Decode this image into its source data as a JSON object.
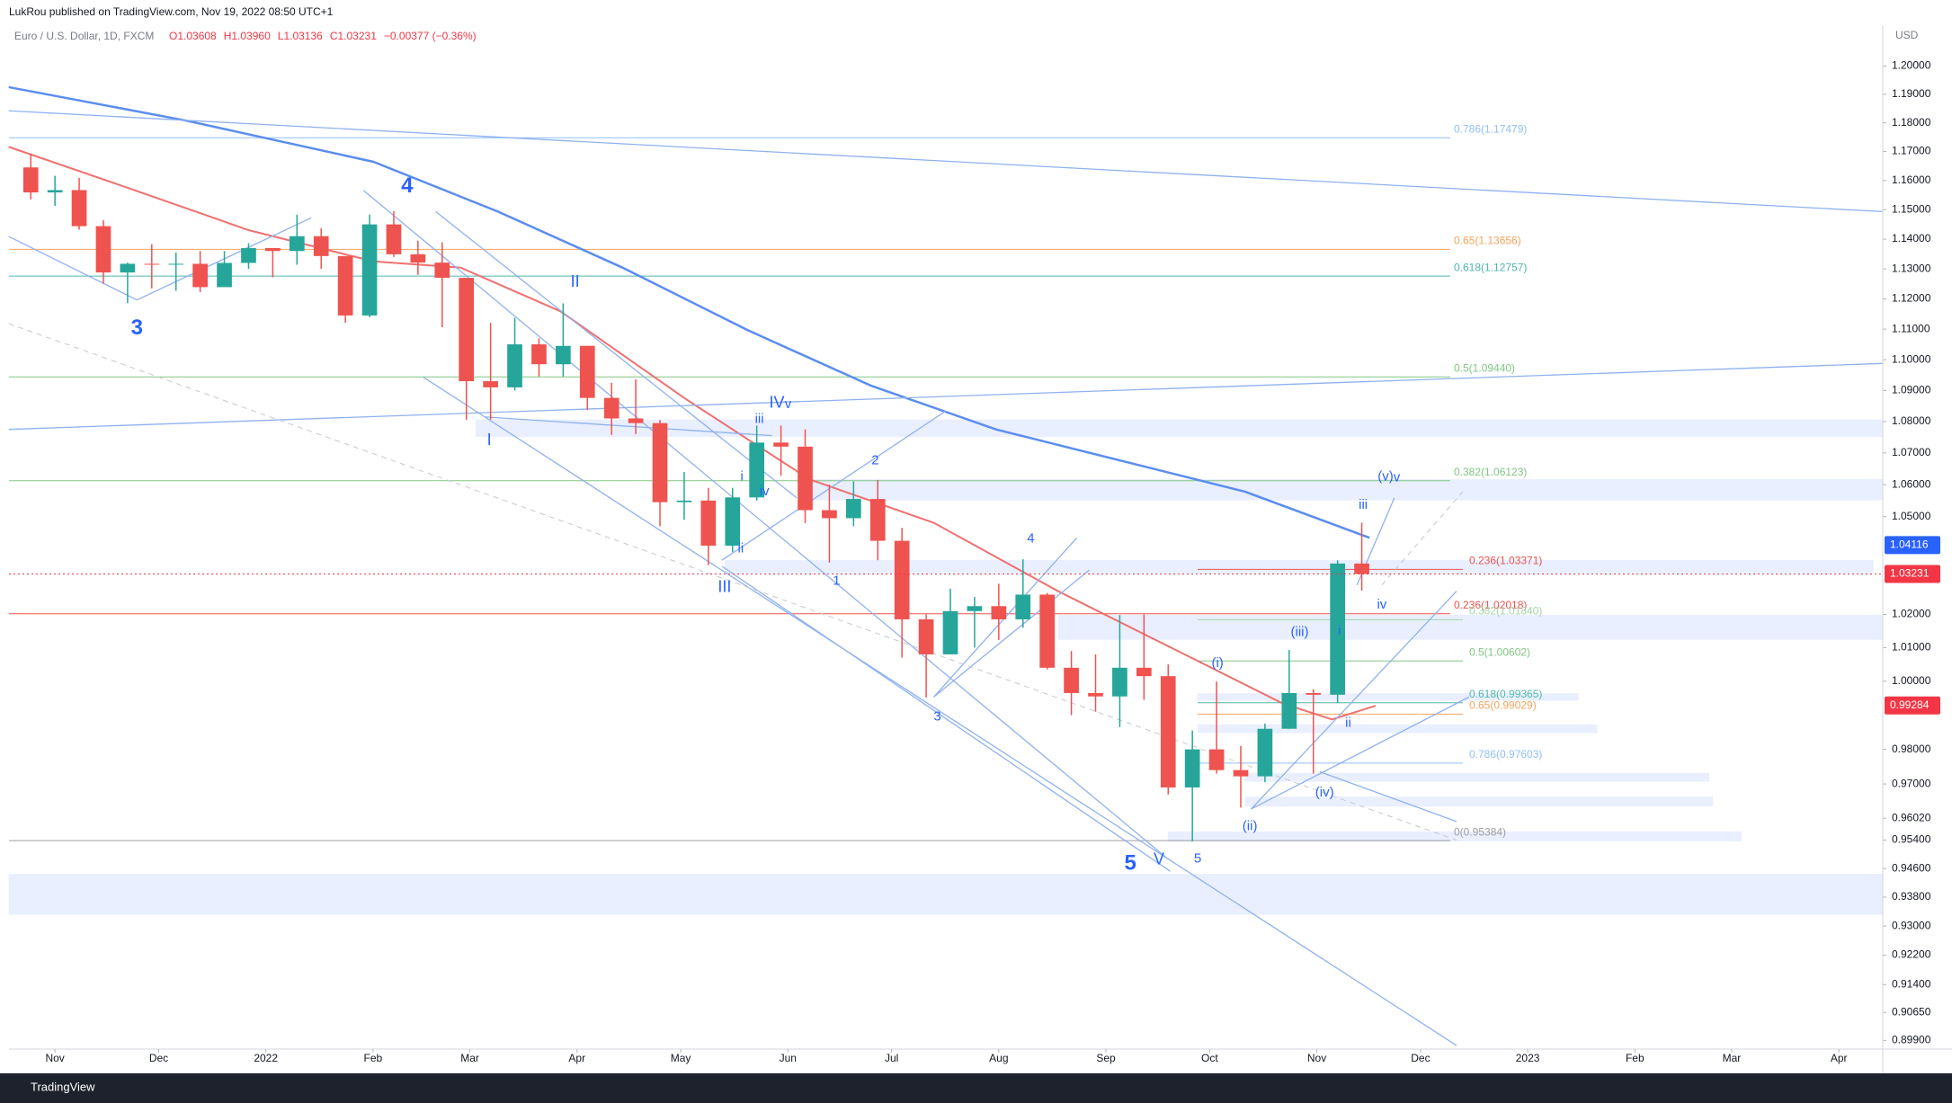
{
  "header": {
    "publisher": "LukRou published on TradingView.com, Nov 19, 2022 08:50 UTC+1"
  },
  "chart_data": {
    "type": "candlestick",
    "title": "Euro / U.S. Dollar, 1D, FXCM",
    "ohlc_labels": [
      "O1.03608",
      "H1.03960",
      "L1.03136",
      "C1.03231",
      "−0.00377 (−0.36%)"
    ],
    "y_unit": "USD",
    "log_scale": true,
    "up_color": "#26a69a",
    "down_color": "#ef5350",
    "x": [
      -7,
      0,
      7,
      14,
      21,
      28,
      35,
      42,
      49,
      56,
      63,
      70,
      77,
      84,
      91,
      98,
      105,
      112,
      119,
      126,
      133,
      140,
      147,
      154,
      161,
      168,
      175,
      182,
      189,
      196,
      203,
      210,
      217,
      224,
      231,
      238,
      245,
      252,
      259,
      266,
      273,
      280,
      287,
      294,
      301,
      308,
      315,
      322,
      329,
      336,
      343,
      350,
      357,
      364,
      371,
      378
    ],
    "open": [
      1.1645,
      1.1559,
      1.1567,
      1.1444,
      1.1288,
      1.1317,
      1.1315,
      1.1317,
      1.1239,
      1.132,
      1.137,
      1.136,
      1.141,
      1.1343,
      1.1145,
      1.145,
      1.1349,
      1.1321,
      1.127,
      1.093,
      1.091,
      1.105,
      1.0985,
      1.1045,
      1.0876,
      1.081,
      1.0795,
      1.0545,
      1.055,
      1.041,
      1.056,
      1.0733,
      1.072,
      1.052,
      1.0495,
      1.0555,
      1.0425,
      1.0185,
      1.008,
      1.021,
      1.0225,
      1.0185,
      1.026,
      1.004,
      0.9965,
      0.9955,
      1.004,
      1.0015,
      0.969,
      0.98,
      0.974,
      0.9722,
      0.986,
      0.9965,
      0.996,
      1.0355
    ],
    "high": [
      1.1692,
      1.1616,
      1.1609,
      1.1464,
      1.1321,
      1.1383,
      1.1355,
      1.136,
      1.136,
      1.1386,
      1.137,
      1.1483,
      1.1437,
      1.134,
      1.1483,
      1.1495,
      1.1395,
      1.139,
      1.127,
      1.1121,
      1.1137,
      1.107,
      1.1185,
      1.1045,
      1.0925,
      1.0936,
      1.0805,
      1.064,
      1.059,
      1.059,
      1.0787,
      1.0787,
      1.0775,
      1.06,
      1.061,
      1.0615,
      1.0465,
      1.02,
      1.0278,
      1.0253,
      1.0293,
      1.0368,
      1.0265,
      1.009,
      1.008,
      1.0198,
      1.02,
      1.005,
      0.9855,
      0.9999,
      0.981,
      0.9875,
      1.0093,
      0.9976,
      1.0365,
      1.0481
    ],
    "low": [
      1.1535,
      1.1513,
      1.1432,
      1.1251,
      1.1186,
      1.1235,
      1.1227,
      1.1222,
      1.1265,
      1.13,
      1.1272,
      1.1314,
      1.13,
      1.1121,
      1.1139,
      1.134,
      1.128,
      1.1106,
      1.0806,
      1.0806,
      1.09,
      1.0945,
      1.0945,
      1.0837,
      1.0757,
      1.076,
      1.047,
      1.049,
      1.035,
      1.039,
      1.055,
      1.0628,
      1.048,
      1.0358,
      1.047,
      1.0365,
      1.007,
      0.9952,
      1.008,
      1.01,
      1.0123,
      1.016,
      1.0035,
      0.99,
      0.991,
      0.9865,
      0.9945,
      0.967,
      0.9536,
      0.973,
      0.9632,
      0.9705,
      0.986,
      0.973,
      0.9935,
      1.0272
    ],
    "close": [
      1.1559,
      1.1567,
      1.1444,
      1.1288,
      1.1317,
      1.1315,
      1.1317,
      1.1239,
      1.132,
      1.137,
      1.136,
      1.141,
      1.1343,
      1.1145,
      1.145,
      1.1349,
      1.1321,
      1.127,
      1.093,
      1.091,
      1.105,
      1.0985,
      1.1045,
      1.0876,
      1.081,
      1.0795,
      1.0545,
      1.055,
      1.041,
      1.056,
      1.0733,
      1.072,
      1.052,
      1.0495,
      1.0555,
      1.0425,
      1.0185,
      1.008,
      1.021,
      1.0225,
      1.0185,
      1.026,
      1.004,
      0.9965,
      0.9955,
      1.004,
      1.0015,
      0.969,
      0.98,
      0.974,
      0.9722,
      0.986,
      0.9965,
      0.996,
      1.0355,
      1.0323
    ],
    "xlim": [
      -13.3,
      528.7
    ],
    "xticks": [
      {
        "value": 0,
        "label": "Nov"
      },
      {
        "value": 30,
        "label": "Dec"
      },
      {
        "value": 61,
        "label": "2022"
      },
      {
        "value": 92,
        "label": "Feb"
      },
      {
        "value": 120,
        "label": "Mar"
      },
      {
        "value": 151,
        "label": "Apr"
      },
      {
        "value": 181,
        "label": "May"
      },
      {
        "value": 212,
        "label": "Jun"
      },
      {
        "value": 242,
        "label": "Jul"
      },
      {
        "value": 273,
        "label": "Aug"
      },
      {
        "value": 304,
        "label": "Sep"
      },
      {
        "value": 334,
        "label": "Oct"
      },
      {
        "value": 365,
        "label": "Nov"
      },
      {
        "value": 395,
        "label": "Dec"
      },
      {
        "value": 426,
        "label": "2023"
      },
      {
        "value": 457,
        "label": "Feb"
      },
      {
        "value": 485,
        "label": "Mar"
      },
      {
        "value": 516,
        "label": "Apr"
      }
    ],
    "ylim": [
      0.8967,
      1.214
    ],
    "yticks": [
      {
        "value": 1.2,
        "label": "1.20000"
      },
      {
        "value": 1.19,
        "label": "1.19000"
      },
      {
        "value": 1.18,
        "label": "1.18000"
      },
      {
        "value": 1.17,
        "label": "1.17000"
      },
      {
        "value": 1.16,
        "label": "1.16000"
      },
      {
        "value": 1.15,
        "label": "1.15000"
      },
      {
        "value": 1.14,
        "label": "1.14000"
      },
      {
        "value": 1.13,
        "label": "1.13000"
      },
      {
        "value": 1.12,
        "label": "1.12000"
      },
      {
        "value": 1.11,
        "label": "1.11000"
      },
      {
        "value": 1.1,
        "label": "1.10000"
      },
      {
        "value": 1.09,
        "label": "1.09000"
      },
      {
        "value": 1.08,
        "label": "1.08000"
      },
      {
        "value": 1.07,
        "label": "1.07000"
      },
      {
        "value": 1.06,
        "label": "1.06000"
      },
      {
        "value": 1.05,
        "label": "1.05000"
      },
      {
        "value": 1.02,
        "label": "1.02000"
      },
      {
        "value": 1.01,
        "label": "1.01000"
      },
      {
        "value": 1,
        "label": "1.00000"
      },
      {
        "value": 0.98,
        "label": "0.98000"
      },
      {
        "value": 0.97,
        "label": "0.97000"
      },
      {
        "value": 0.9602,
        "label": "0.96020"
      },
      {
        "value": 0.954,
        "label": "0.95400"
      },
      {
        "value": 0.946,
        "label": "0.94600"
      },
      {
        "value": 0.938,
        "label": "0.93800"
      },
      {
        "value": 0.93,
        "label": "0.93000"
      },
      {
        "value": 0.922,
        "label": "0.92200"
      },
      {
        "value": 0.914,
        "label": "0.91400"
      },
      {
        "value": 0.9065,
        "label": "0.90650"
      },
      {
        "value": 0.899,
        "label": "0.89900"
      }
    ],
    "price_tags": [
      {
        "value": 1.04116,
        "label": "1.04116",
        "color": "#2962ff"
      },
      {
        "value": 1.03231,
        "label": "1.03231",
        "color": "#f23645"
      },
      {
        "value": 0.99284,
        "label": "0.99284",
        "color": "#f23645"
      }
    ],
    "fib_levels": [
      {
        "value": 1.17479,
        "label": "0.786(1.17479)",
        "color": "#90bff9"
      },
      {
        "value": 1.13656,
        "label": "0.65(1.13656)",
        "color": "#f7a35c"
      },
      {
        "value": 1.12757,
        "label": "0.618(1.12757)",
        "color": "#4db6ac"
      },
      {
        "value": 1.0944,
        "label": "0.5(1.09440)",
        "color": "#81c784"
      },
      {
        "value": 1.06123,
        "label": "0.382(1.06123)",
        "color": "#81c784"
      },
      {
        "value": 1.02018,
        "label": "0.236(1.02018)",
        "color": "#ef5350"
      },
      {
        "value": 0.95384,
        "label": "0(0.95384)",
        "color": "#9e9e9e"
      }
    ],
    "fib_levels_2": [
      {
        "value": 1.03371,
        "label": "0.236(1.03371)",
        "color": "#ef5350"
      },
      {
        "value": 1.0184,
        "label": "0.382(1.01840)",
        "color": "#a5d6a7"
      },
      {
        "value": 1.00602,
        "label": "0.5(1.00602)",
        "color": "#81c784"
      },
      {
        "value": 0.99365,
        "label": "0.618(0.99365)",
        "color": "#4db6ac"
      },
      {
        "value": 0.99029,
        "label": "0.65(0.99029)",
        "color": "#f7a35c"
      },
      {
        "value": 0.97603,
        "label": "0.786(0.97603)",
        "color": "#90bff9"
      }
    ],
    "wave_labels": [
      "3",
      "4",
      "II",
      "I",
      "IV",
      "v",
      "iii",
      "i",
      "iv",
      "ii",
      "III",
      "2",
      "1",
      "4",
      "3",
      "5",
      "V",
      "5",
      "(i)",
      "(ii)",
      "(iii)",
      "(iv)",
      "ii",
      "i",
      "iii",
      "iv",
      "(v)",
      "v"
    ]
  },
  "footer": {
    "brand": "TradingView"
  }
}
